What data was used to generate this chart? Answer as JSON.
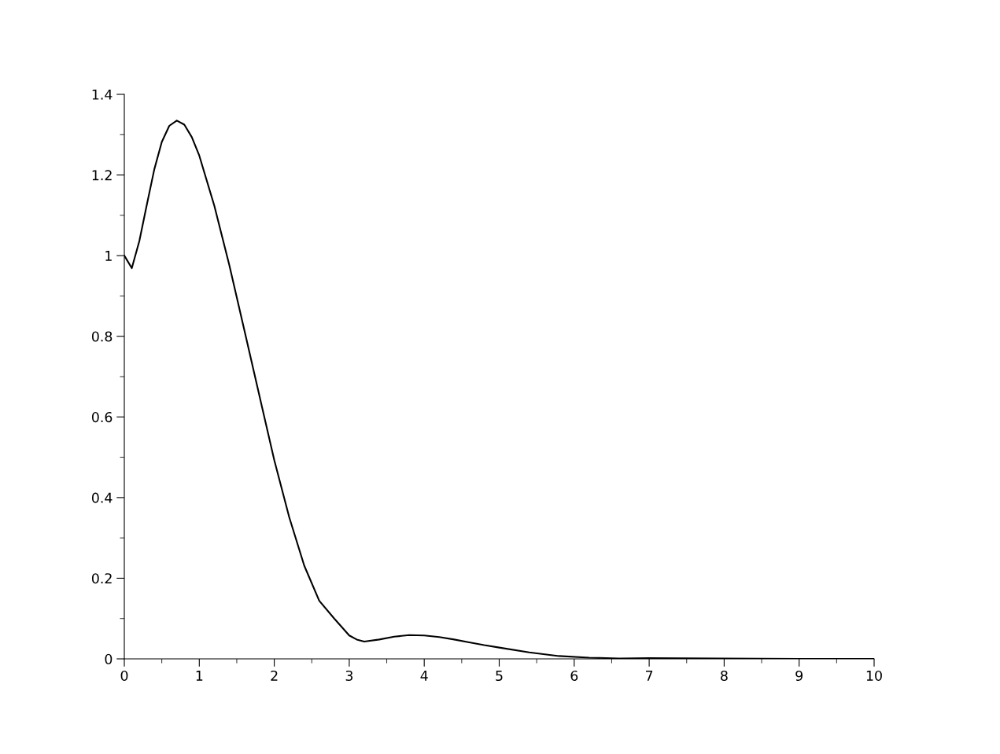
{
  "chart_data": {
    "type": "line",
    "xlim": [
      0,
      10
    ],
    "ylim": [
      0,
      1.4
    ],
    "xticks": [
      0,
      1,
      2,
      3,
      4,
      5,
      6,
      7,
      8,
      9,
      10
    ],
    "yticks": [
      0,
      0.2,
      0.4,
      0.6,
      0.8,
      1,
      1.2,
      1.4
    ],
    "grid": false,
    "marker": "none",
    "line_style": "solid",
    "series": [
      {
        "color": "#000000",
        "x": [
          0,
          0.1,
          0.2,
          0.3,
          0.4,
          0.5,
          0.6,
          0.7,
          0.8,
          0.9,
          1.0,
          1.2,
          1.4,
          1.6,
          1.8,
          2.0,
          2.2,
          2.4,
          2.6,
          2.8,
          2.9,
          3.0,
          3.1,
          3.2,
          3.4,
          3.6,
          3.8,
          4.0,
          4.2,
          4.4,
          4.6,
          4.8,
          5.0,
          5.4,
          5.8,
          6.2,
          6.6,
          7.0,
          8.0,
          9.0,
          10.0
        ],
        "values": [
          1.0,
          0.969,
          1.036,
          1.126,
          1.214,
          1.282,
          1.322,
          1.335,
          1.325,
          1.294,
          1.248,
          1.124,
          0.977,
          0.816,
          0.654,
          0.493,
          0.351,
          0.231,
          0.144,
          0.1,
          0.079,
          0.058,
          0.048,
          0.043,
          0.048,
          0.055,
          0.059,
          0.058,
          0.054,
          0.048,
          0.041,
          0.034,
          0.028,
          0.016,
          0.007,
          0.003,
          0.001,
          0.002,
          0.001,
          0,
          0
        ]
      }
    ]
  }
}
